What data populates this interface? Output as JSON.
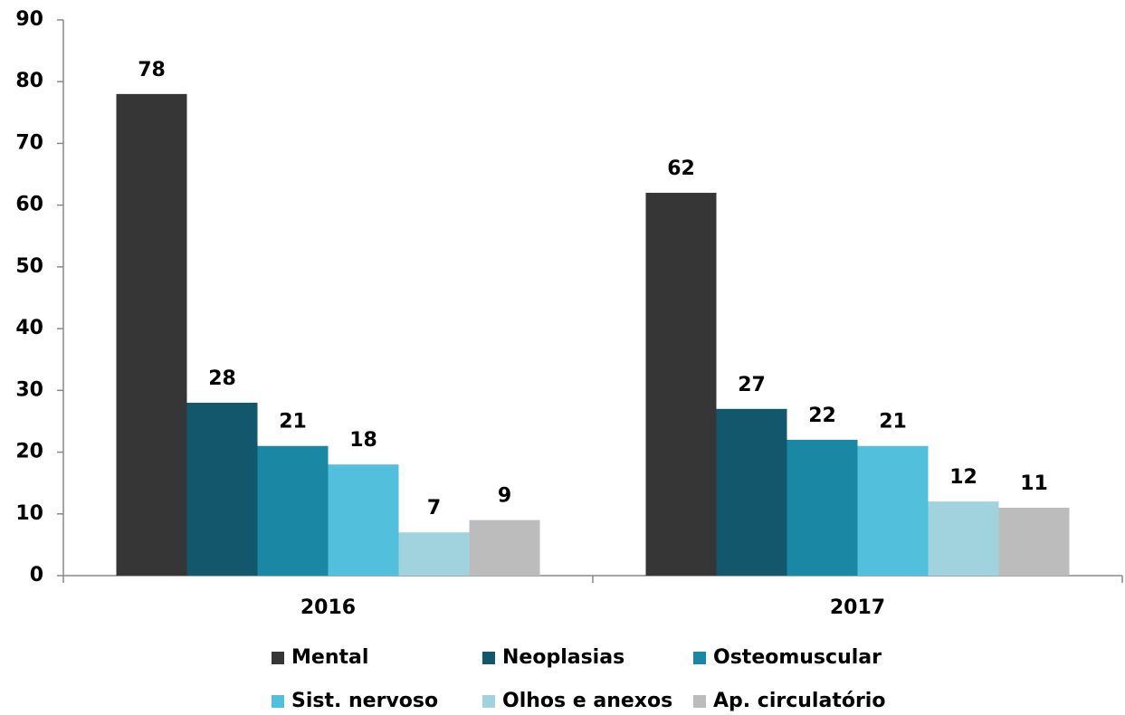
{
  "chart_data": {
    "type": "bar",
    "categories": [
      "2016",
      "2017"
    ],
    "series": [
      {
        "name": "Mental",
        "color": "#363636",
        "values": [
          78,
          62
        ]
      },
      {
        "name": "Neoplasias",
        "color": "#12576b",
        "values": [
          28,
          27
        ]
      },
      {
        "name": "Osteomuscular",
        "color": "#1a87a5",
        "values": [
          21,
          22
        ]
      },
      {
        "name": "Sist. nervoso",
        "color": "#52c0dc",
        "values": [
          18,
          21
        ]
      },
      {
        "name": "Olhos e anexos",
        "color": "#a1d3df",
        "values": [
          7,
          12
        ]
      },
      {
        "name": "Ap. circulatório",
        "color": "#bcbcbc",
        "values": [
          9,
          11
        ]
      }
    ],
    "ylim": [
      0,
      90
    ],
    "yticks": [
      0,
      10,
      20,
      30,
      40,
      50,
      60,
      70,
      80,
      90
    ],
    "grid": false,
    "legend": "bottom"
  }
}
